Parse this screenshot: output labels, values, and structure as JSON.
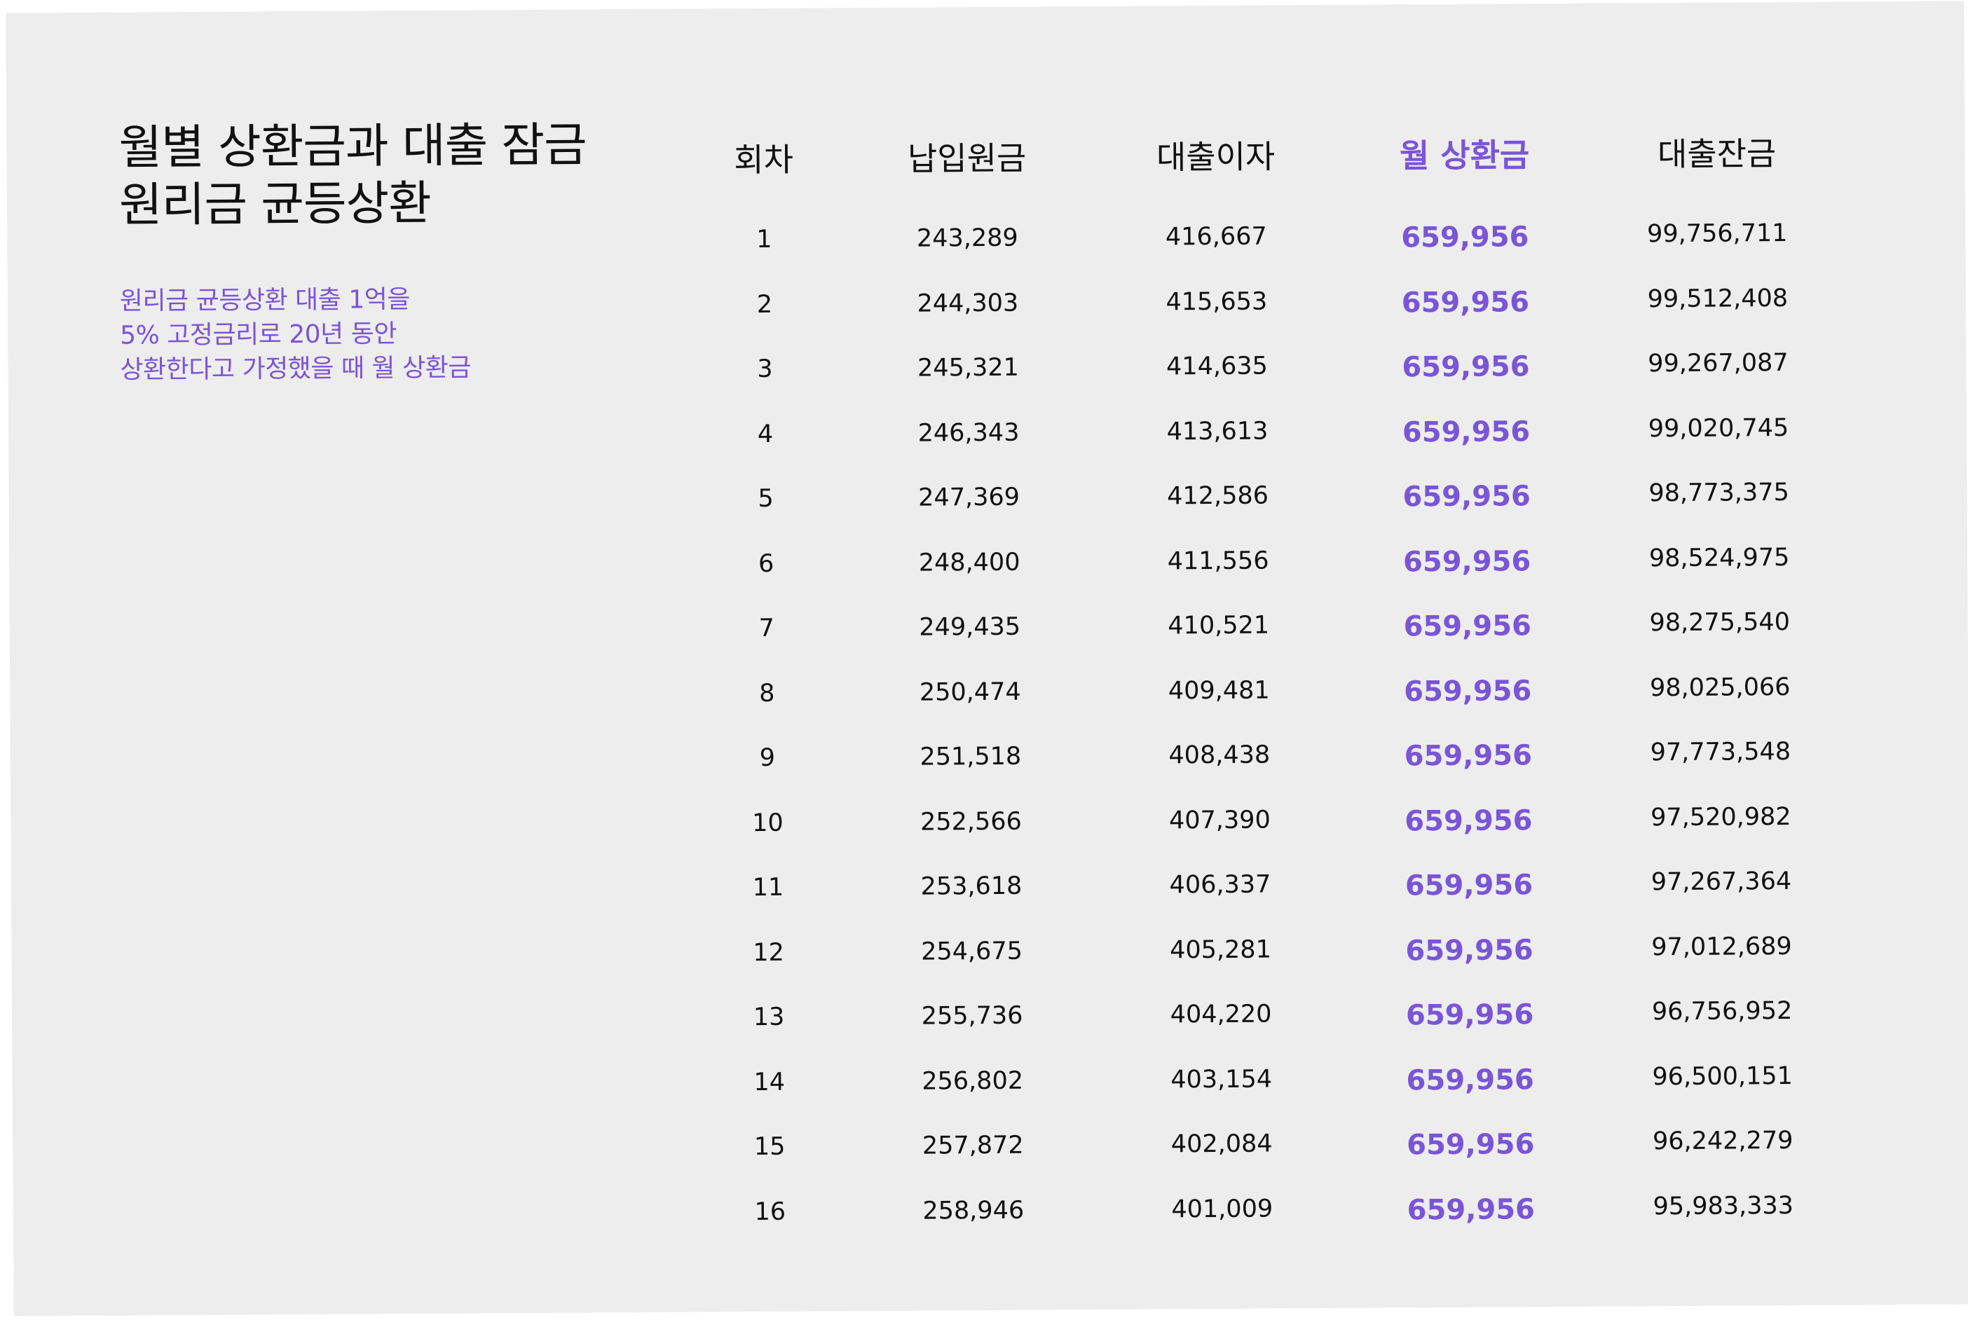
{
  "title": {
    "line1": "월별 상환금과 대출 잠금",
    "line2": "원리금 균등상환"
  },
  "description": {
    "line1": "원리금 균등상환 대출 1억을",
    "line2": "5% 고정금리로 20년 동안",
    "line3": "상환한다고 가정했을 때 월 상환금"
  },
  "colors": {
    "accent": "#7a55d6",
    "background": "#ededed",
    "text": "#111111"
  },
  "table": {
    "headers": [
      "회차",
      "납입원금",
      "대출이자",
      "월 상환금",
      "대출잔금"
    ],
    "rows": [
      [
        "1",
        "243,289",
        "416,667",
        "659,956",
        "99,756,711"
      ],
      [
        "2",
        "244,303",
        "415,653",
        "659,956",
        "99,512,408"
      ],
      [
        "3",
        "245,321",
        "414,635",
        "659,956",
        "99,267,087"
      ],
      [
        "4",
        "246,343",
        "413,613",
        "659,956",
        "99,020,745"
      ],
      [
        "5",
        "247,369",
        "412,586",
        "659,956",
        "98,773,375"
      ],
      [
        "6",
        "248,400",
        "411,556",
        "659,956",
        "98,524,975"
      ],
      [
        "7",
        "249,435",
        "410,521",
        "659,956",
        "98,275,540"
      ],
      [
        "8",
        "250,474",
        "409,481",
        "659,956",
        "98,025,066"
      ],
      [
        "9",
        "251,518",
        "408,438",
        "659,956",
        "97,773,548"
      ],
      [
        "10",
        "252,566",
        "407,390",
        "659,956",
        "97,520,982"
      ],
      [
        "11",
        "253,618",
        "406,337",
        "659,956",
        "97,267,364"
      ],
      [
        "12",
        "254,675",
        "405,281",
        "659,956",
        "97,012,689"
      ],
      [
        "13",
        "255,736",
        "404,220",
        "659,956",
        "96,756,952"
      ],
      [
        "14",
        "256,802",
        "403,154",
        "659,956",
        "96,500,151"
      ],
      [
        "15",
        "257,872",
        "402,084",
        "659,956",
        "96,242,279"
      ],
      [
        "16",
        "258,946",
        "401,009",
        "659,956",
        "95,983,333"
      ]
    ]
  }
}
